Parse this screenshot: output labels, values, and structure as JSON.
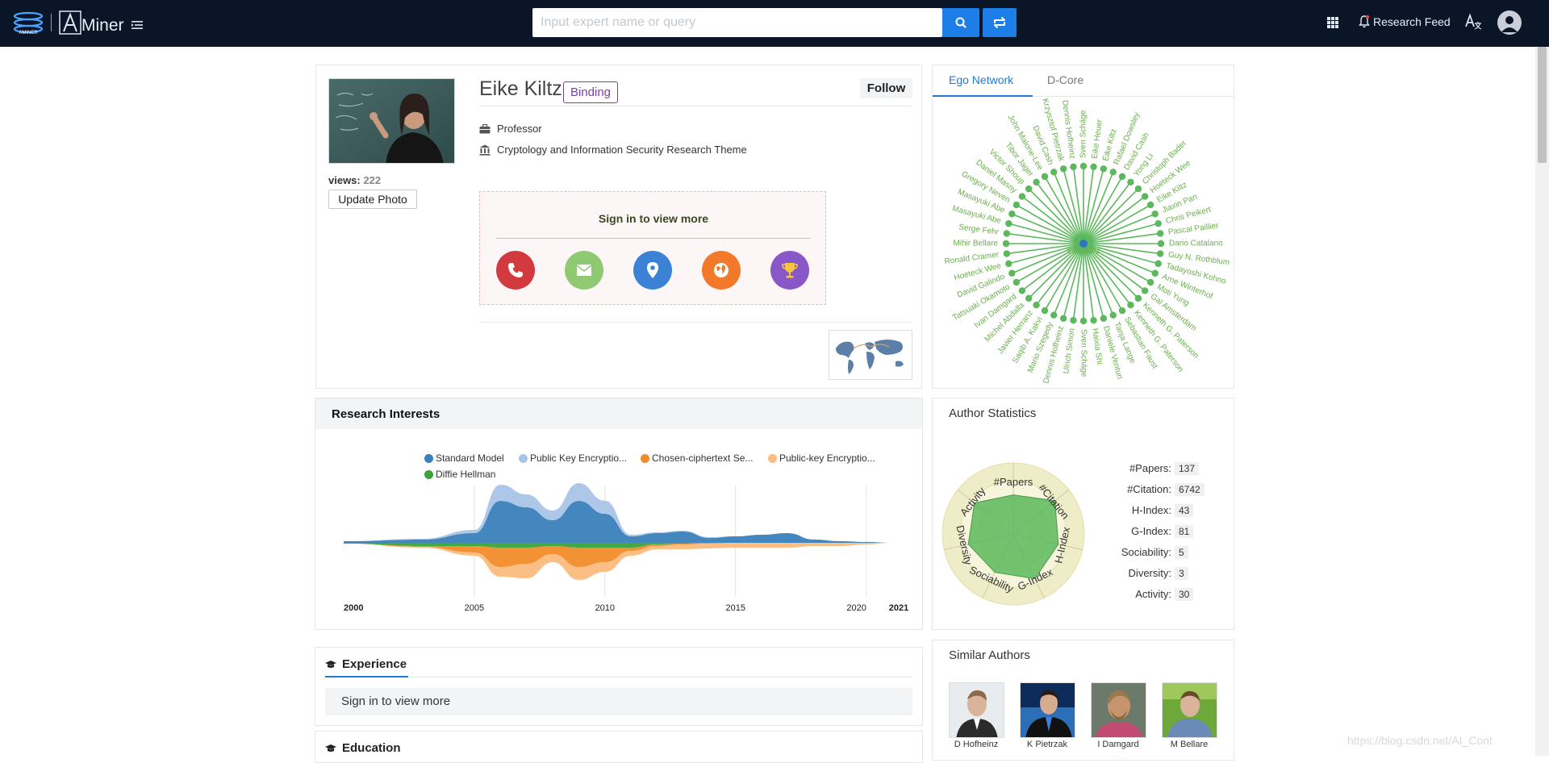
{
  "header": {
    "logo_text": "Miner",
    "search_placeholder": "Input expert name or query",
    "research_feed_label": "Research Feed"
  },
  "profile": {
    "views_label": "views:",
    "views_count": "222",
    "update_photo_label": "Update Photo",
    "name": "Eike Kiltz",
    "binding_label": "Binding",
    "follow_label": "Follow",
    "position": "Professor",
    "affiliation": "Cryptology and Information Security Research Theme",
    "signin_text": "Sign in to view more",
    "contact_colors": [
      "#d33a3f",
      "#8fc972",
      "#3b82d6",
      "#f2782a",
      "#8a57c8"
    ]
  },
  "ego_network": {
    "tabs": [
      "Ego Network",
      "D-Core"
    ],
    "active_tab": "Ego Network",
    "center": "Eike Kiltz",
    "nodes": [
      "Sven Schäge",
      "Eike Heuer",
      "Eike Kiltz",
      "Rafael Dowsley",
      "David Cash",
      "Yong Li",
      "Christoph Bader",
      "Hoeteck Wee",
      "Eike Kiltz",
      "Jiaxin Pan",
      "Chris Peikert",
      "Pascal Paillier",
      "Dario Catalano",
      "Guy N. Rothblum",
      "Tadayoshi Kohno",
      "Arne Winterhof",
      "Moti Yung",
      "Gal Amsterdam",
      "Kenneth G. Paterson",
      "Kenneth G. Paterson",
      "Sebastian Faust",
      "Tanja Lange",
      "Daniele Venturi",
      "Haixia Shi",
      "Sven Schäge",
      "Ulrich Simon",
      "Dennis Hofheinz",
      "Mario Szegedy",
      "Saqib A. Kakvi",
      "Javier Herranz",
      "Michel Abdalla",
      "Ivan Damgard",
      "Tatsuaki Okamoto",
      "David Galindo",
      "Hoeteck Wee",
      "Ronald Cramer",
      "Mihir Bellare",
      "Serge Fehr",
      "Masayuki Abe",
      "Masayuki Abe",
      "Gregory Neven",
      "Daniel Masny",
      "Victor Shoup",
      "Tibor Jager",
      "John Malone-Lee",
      "David Cash",
      "Krzysztof Pietrzak",
      "Dennis Hofheinz"
    ]
  },
  "research_interests": {
    "title": "Research Interests",
    "legend": [
      {
        "label": "Standard Model",
        "color": "#3a80ba"
      },
      {
        "label": "Public Key Encryptio...",
        "color": "#a9c4e8"
      },
      {
        "label": "Chosen-ciphertext Se...",
        "color": "#f28c2a"
      },
      {
        "label": "Public-key Encryptio...",
        "color": "#fbbc7f"
      },
      {
        "label": "Diffie Hellman",
        "color": "#3aa33a"
      }
    ]
  },
  "chart_data": {
    "type": "area",
    "x_ticks": [
      "2000",
      "2005",
      "2010",
      "2015",
      "2020",
      "2021"
    ],
    "xlim": [
      2000,
      2021
    ],
    "x": [
      2000,
      2003,
      2005,
      2006,
      2007,
      2008,
      2009,
      2010,
      2011,
      2012,
      2013,
      2014,
      2015,
      2016,
      2017,
      2018,
      2019,
      2020,
      2021
    ],
    "series": [
      {
        "name": "Standard Model",
        "values": [
          0.1,
          0.2,
          0.6,
          2.6,
          2.2,
          1.4,
          2.6,
          1.8,
          0.4,
          0.6,
          0.7,
          0.3,
          0.4,
          0.5,
          0.6,
          0.2,
          0.1,
          0.05,
          0
        ]
      },
      {
        "name": "Public Key Encryptio...",
        "values": [
          0,
          0.05,
          0.2,
          1.0,
          0.8,
          0.6,
          1.1,
          0.8,
          0.1,
          0.05,
          0.05,
          0.05,
          0,
          0,
          0,
          0,
          0,
          0,
          0
        ]
      },
      {
        "name": "Chosen-ciphertext Se...",
        "values": [
          0,
          0.05,
          0.4,
          1.2,
          1.0,
          0.5,
          1.2,
          0.9,
          0.2,
          0.1,
          0.05,
          0.05,
          0,
          0,
          0,
          0,
          0,
          0,
          0
        ]
      },
      {
        "name": "Public-key Encryptio...",
        "values": [
          0,
          0.05,
          0.2,
          0.6,
          0.9,
          0.5,
          0.8,
          0.6,
          0.3,
          0.2,
          0.3,
          0.3,
          0.3,
          0.3,
          0.3,
          0.2,
          0.2,
          0.1,
          0
        ]
      },
      {
        "name": "Diffie Hellman",
        "values": [
          0.05,
          0.2,
          0.2,
          0.3,
          0.3,
          0.2,
          0.3,
          0.3,
          0.3,
          0.1,
          0.05,
          0,
          0,
          0,
          0,
          0,
          0,
          0,
          0
        ]
      }
    ]
  },
  "author_statistics": {
    "title": "Author Statistics",
    "radar_axes": [
      "#Papers",
      "#Citation",
      "H-Index",
      "G-Index",
      "Sociability",
      "Diversity",
      "Activity"
    ],
    "radar_values": [
      0.55,
      0.75,
      0.65,
      0.7,
      0.6,
      0.65,
      0.7
    ],
    "stats": [
      {
        "label": "#Papers:",
        "value": "137"
      },
      {
        "label": "#Citation:",
        "value": "6742"
      },
      {
        "label": "H-Index:",
        "value": "43"
      },
      {
        "label": "G-Index:",
        "value": "81"
      },
      {
        "label": "Sociability:",
        "value": "5"
      },
      {
        "label": "Diversity:",
        "value": "3"
      },
      {
        "label": "Activity:",
        "value": "30"
      }
    ]
  },
  "experience": {
    "title": "Experience",
    "signin_text": "Sign in to view more"
  },
  "education": {
    "title": "Education"
  },
  "similar_authors": {
    "title": "Similar Authors",
    "authors": [
      "D Hofheinz",
      "K Pietrzak",
      "I Damgard",
      "M Bellare"
    ]
  },
  "watermark": "https://blog.csdn.net/AI_Cont"
}
